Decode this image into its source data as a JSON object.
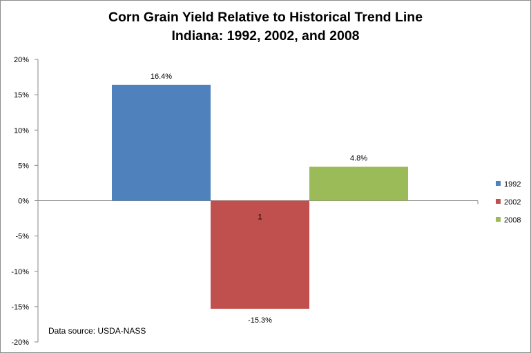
{
  "chart_data": {
    "type": "bar",
    "title": "Corn Grain Yield Relative to Historical Trend Line",
    "subtitle": "Indiana: 1992, 2002, and 2008",
    "xlabel": "",
    "ylabel": "",
    "ylim": [
      -20,
      20
    ],
    "yticks": [
      "20%",
      "15%",
      "10%",
      "5%",
      "0%",
      "-5%",
      "-10%",
      "-15%",
      "-20%"
    ],
    "category_label": "1",
    "series": [
      {
        "name": "1992",
        "value": 16.4,
        "label": "16.4%",
        "color": "#4f81bd"
      },
      {
        "name": "2002",
        "value": -15.3,
        "label": "-15.3%",
        "color": "#c0504d"
      },
      {
        "name": "2008",
        "value": 4.8,
        "label": "4.8%",
        "color": "#9bbb59"
      }
    ],
    "legend_position": "right",
    "grid": false
  },
  "footnote": "Data source: USDA-NASS"
}
